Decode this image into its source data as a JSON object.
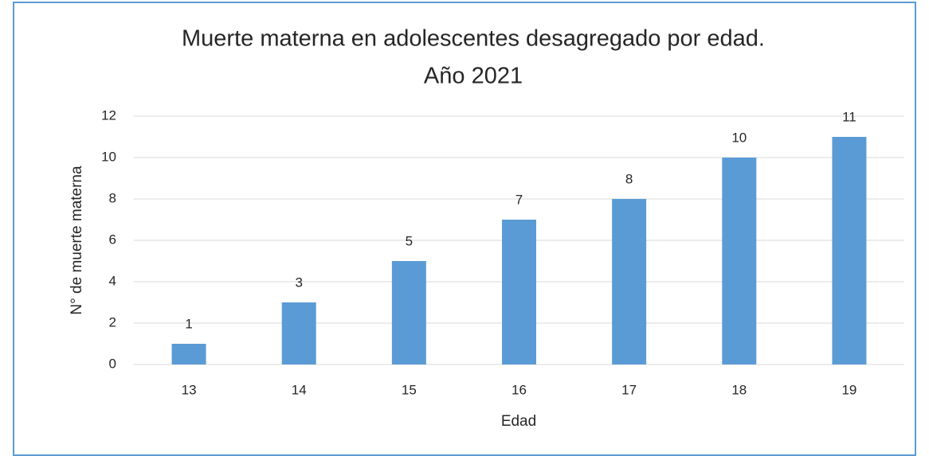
{
  "chart_data": {
    "type": "bar",
    "title": [
      "Muerte materna en adolescentes desagregado por edad.",
      "Año 2021"
    ],
    "x_label": "Edad",
    "y_label": "N° de muerte materna",
    "categories": [
      "13",
      "14",
      "15",
      "16",
      "17",
      "18",
      "19"
    ],
    "values": [
      1,
      3,
      5,
      7,
      8,
      10,
      11
    ],
    "color": "#5b9bd5",
    "ylim": [
      0,
      12
    ],
    "yticks": [
      0,
      2,
      4,
      6,
      8,
      10,
      12
    ],
    "grid": true,
    "data_labels": true
  }
}
